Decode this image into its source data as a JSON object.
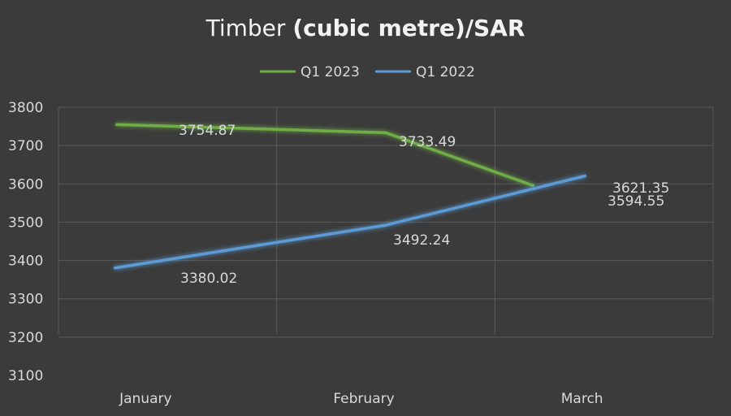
{
  "chart_data": {
    "type": "line",
    "title": "Timber (cubic metre)/SAR",
    "title_parts": [
      {
        "text": "Timber ",
        "bold": false
      },
      {
        "text": "(cubic metre)/SAR",
        "bold": true
      }
    ],
    "categories": [
      "January",
      "February",
      "March"
    ],
    "ylim": [
      3100,
      3800
    ],
    "yticks": [
      "3800",
      "3700",
      "3600",
      "3500",
      "3400",
      "3300",
      "3200",
      "3100"
    ],
    "grid": true,
    "legend_position": "top",
    "series": [
      {
        "name": "Q1 2023",
        "color": "#70ad47",
        "values": [
          3754.87,
          3733.49,
          3594.55
        ],
        "labels": [
          "3754.87",
          "3733.49",
          "3594.55"
        ]
      },
      {
        "name": "Q1 2022",
        "color": "#5b9bd5",
        "values": [
          3380.02,
          3492.24,
          3621.35
        ],
        "labels": [
          "3380.02",
          "3492.24",
          "3621.35"
        ]
      }
    ]
  }
}
